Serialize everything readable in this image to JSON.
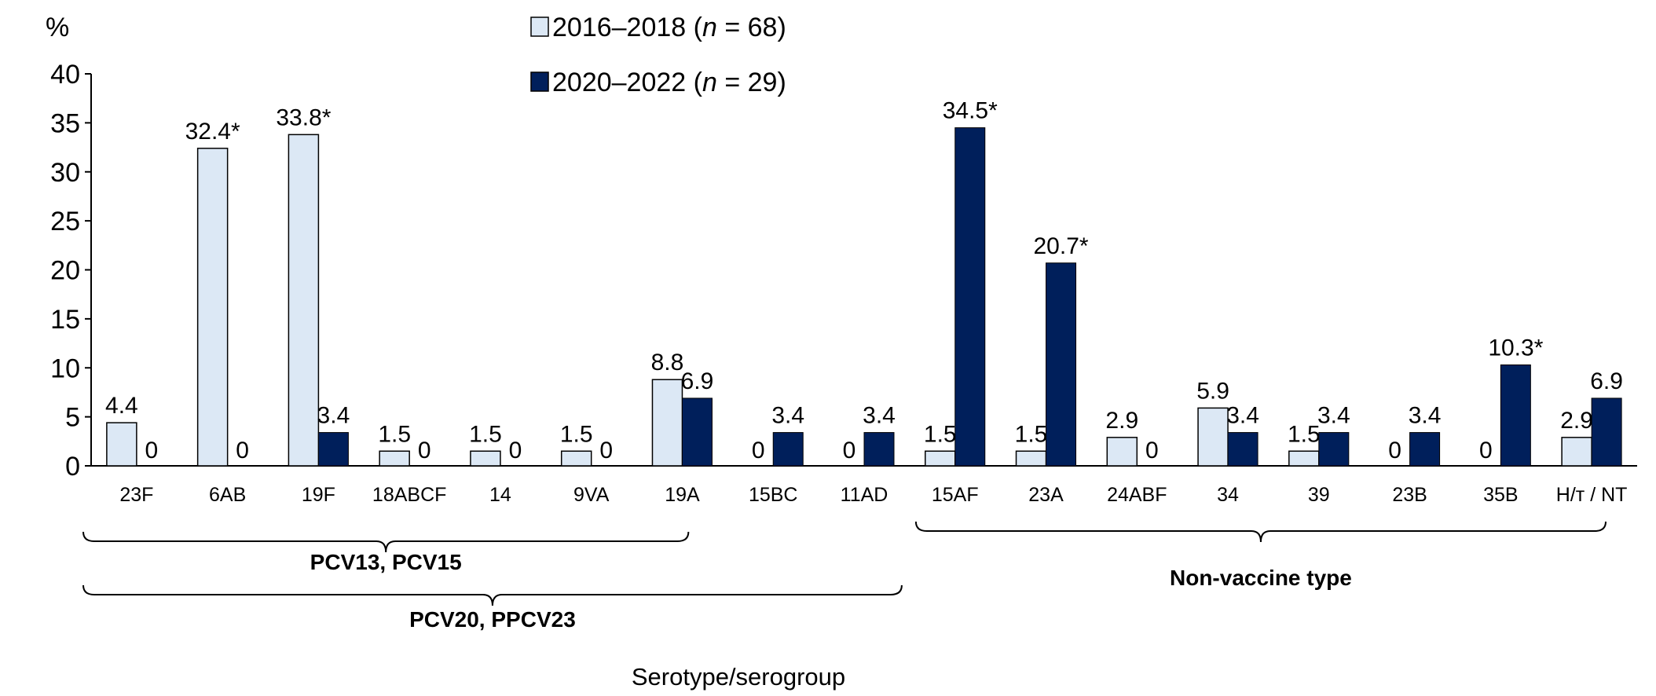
{
  "chart_data": {
    "type": "bar",
    "ylabel": "%",
    "xlabel": "Serotype/serogroup",
    "ylim": [
      0,
      40
    ],
    "yticks": [
      0,
      5,
      10,
      15,
      20,
      25,
      30,
      35,
      40
    ],
    "grid": false,
    "legend_placement": "top-center",
    "categories": [
      "23F",
      "6AB",
      "19F",
      "18ABCF",
      "14",
      "9VA",
      "19A",
      "15BC",
      "11AD",
      "15AF",
      "23A",
      "24ABF",
      "34",
      "39",
      "23B",
      "35B",
      "H/т / NT"
    ],
    "series": [
      {
        "name": "2016–2018 (n = 68)",
        "name_prefix": "2016–2018 (",
        "name_italic": "n",
        "name_suffix": " = 68)",
        "color": "#dce8f5",
        "values": [
          4.4,
          32.4,
          33.8,
          1.5,
          1.5,
          1.5,
          8.8,
          0,
          0,
          1.5,
          1.5,
          2.9,
          5.9,
          1.5,
          0,
          0,
          2.9
        ],
        "labels": [
          "4.4",
          "32.4*",
          "33.8*",
          "1.5",
          "1.5",
          "1.5",
          "8.8",
          "0",
          "0",
          "1.5",
          "1.5",
          "2.9",
          "5.9",
          "1.5",
          "0",
          "0",
          "2.9"
        ]
      },
      {
        "name": "2020–2022 (n = 29)",
        "name_prefix": "2020–2022 (",
        "name_italic": "n",
        "name_suffix": " = 29)",
        "color": "#001f5b",
        "values": [
          0,
          0,
          3.4,
          0,
          0,
          0,
          6.9,
          3.4,
          3.4,
          34.5,
          20.7,
          0,
          3.4,
          3.4,
          3.4,
          10.3,
          6.9
        ],
        "labels": [
          "0",
          "0",
          "3.4",
          "0",
          "0",
          "0",
          "6.9",
          "3.4",
          "3.4",
          "34.5*",
          "20.7*",
          "0",
          "3.4",
          "3.4",
          "3.4",
          "10.3*",
          "6.9"
        ]
      }
    ],
    "groups": [
      {
        "label": "PCV13, PCV15",
        "from": "23F",
        "to": "19A"
      },
      {
        "label": "PCV20, PPCV23",
        "from": "23F",
        "to": "11AD"
      },
      {
        "label": "Non-vaccine type",
        "from": "15AF",
        "to": "H/т / NT"
      }
    ]
  }
}
